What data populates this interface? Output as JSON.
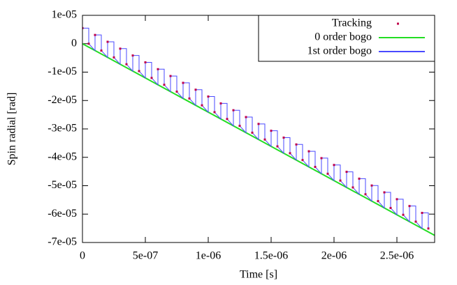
{
  "chart_data": {
    "type": "line",
    "xlabel": "Time [s]",
    "ylabel": "Spin radial [rad]",
    "xlim": [
      0,
      2.8e-06
    ],
    "ylim": [
      -7e-05,
      1e-05
    ],
    "xticks": [
      0,
      {
        "value": 5e-07,
        "label": "5e-07"
      },
      {
        "value": 1e-06,
        "label": "1e-06"
      },
      {
        "value": 1.5e-06,
        "label": "1.5e-06"
      },
      {
        "value": 2e-06,
        "label": "2e-06"
      },
      {
        "value": 2.5e-06,
        "label": "2.5e-06"
      }
    ],
    "yticks": [
      {
        "value": 1e-05,
        "label": "1e-05"
      },
      0,
      {
        "value": -1e-05,
        "label": "-1e-05"
      },
      {
        "value": -2e-05,
        "label": "-2e-05"
      },
      {
        "value": -3e-05,
        "label": "-3e-05"
      },
      {
        "value": -4e-05,
        "label": "-4e-05"
      },
      {
        "value": -5e-05,
        "label": "-5e-05"
      },
      {
        "value": -6e-05,
        "label": "-6e-05"
      },
      {
        "value": -7e-05,
        "label": "-7e-05"
      }
    ],
    "legend": "upper right",
    "series": [
      {
        "name": "Tracking",
        "style": "points",
        "color": "#c0004a",
        "x": [
          0,
          5e-08,
          1e-07,
          1.5e-07,
          2e-07,
          2.5e-07,
          3e-07,
          3.5e-07,
          4e-07,
          4.5e-07,
          5e-07,
          5.5e-07,
          6e-07,
          6.5e-07,
          7e-07,
          7.5e-07,
          8e-07,
          8.5e-07,
          9e-07,
          9.5e-07,
          1e-06,
          1.05e-06,
          1.1e-06,
          1.15e-06,
          1.2e-06,
          1.25e-06,
          1.3e-06,
          1.35e-06,
          1.4e-06,
          1.45e-06,
          1.5e-06,
          1.55e-06,
          1.6e-06,
          1.65e-06,
          1.7e-06,
          1.75e-06,
          1.8e-06,
          1.85e-06,
          1.9e-06,
          1.95e-06,
          2e-06,
          2.05e-06,
          2.1e-06,
          2.15e-06,
          2.2e-06,
          2.25e-06,
          2.3e-06,
          2.35e-06,
          2.4e-06,
          2.45e-06,
          2.5e-06,
          2.55e-06,
          2.6e-06,
          2.65e-06,
          2.7e-06,
          2.75e-06
        ],
        "values": [
          5.5e-06,
          0,
          3.09e-06,
          -2.41e-06,
          6.8e-07,
          -4.82e-06,
          -1.73e-06,
          -7.23e-06,
          -4.14e-06,
          -9.64e-06,
          -6.55e-06,
          -1.205e-05,
          -8.96e-06,
          -1.446e-05,
          -1.137e-05,
          -1.687e-05,
          -1.378e-05,
          -1.928e-05,
          -1.619e-05,
          -2.169e-05,
          -1.86e-05,
          -2.41e-05,
          -2.101e-05,
          -2.651e-05,
          -2.342e-05,
          -2.892e-05,
          -2.583e-05,
          -3.133e-05,
          -2.824e-05,
          -3.374e-05,
          -3.065e-05,
          -3.615e-05,
          -3.306e-05,
          -3.856e-05,
          -3.547e-05,
          -4.097e-05,
          -3.788e-05,
          -4.338e-05,
          -4.029e-05,
          -4.579e-05,
          -4.27e-05,
          -4.82e-05,
          -4.511e-05,
          -5.061e-05,
          -4.752e-05,
          -5.302e-05,
          -4.993e-05,
          -5.543e-05,
          -5.234e-05,
          -5.784e-05,
          -5.475e-05,
          -6.025e-05,
          -5.716e-05,
          -6.266e-05,
          -5.957e-05,
          -6.507e-05
        ]
      },
      {
        "name": "0 order bogo",
        "style": "line",
        "color": "#22dd22",
        "x": [
          0,
          2.8e-06
        ],
        "values": [
          0,
          -6.748e-05
        ]
      },
      {
        "name": "1st order bogo",
        "style": "line",
        "color": "#4a4aff",
        "x": [
          0,
          0,
          5e-08,
          5e-08,
          1e-07,
          1e-07,
          1.5e-07,
          1.5e-07,
          2e-07,
          2e-07,
          2.5e-07,
          2.5e-07,
          3e-07,
          3e-07,
          3.5e-07,
          3.5e-07,
          4e-07,
          4e-07,
          4.5e-07,
          4.5e-07,
          5e-07,
          5e-07,
          5.5e-07,
          5.5e-07,
          6e-07,
          6e-07,
          6.5e-07,
          6.5e-07,
          7e-07,
          7e-07,
          7.5e-07,
          7.5e-07,
          8e-07,
          8e-07,
          8.5e-07,
          8.5e-07,
          9e-07,
          9e-07,
          9.5e-07,
          9.5e-07,
          1e-06,
          1e-06,
          1.05e-06,
          1.05e-06,
          1.1e-06,
          1.1e-06,
          1.15e-06,
          1.15e-06,
          1.2e-06,
          1.2e-06,
          1.25e-06,
          1.25e-06,
          1.3e-06,
          1.3e-06,
          1.35e-06,
          1.35e-06,
          1.4e-06,
          1.4e-06,
          1.45e-06,
          1.45e-06,
          1.5e-06,
          1.5e-06,
          1.55e-06,
          1.55e-06,
          1.6e-06,
          1.6e-06,
          1.65e-06,
          1.65e-06,
          1.7e-06,
          1.7e-06,
          1.75e-06,
          1.75e-06,
          1.8e-06,
          1.8e-06,
          1.85e-06,
          1.85e-06,
          1.9e-06,
          1.9e-06,
          1.95e-06,
          1.95e-06,
          2e-06,
          2e-06,
          2.05e-06,
          2.05e-06,
          2.1e-06,
          2.1e-06,
          2.15e-06,
          2.15e-06,
          2.2e-06,
          2.2e-06,
          2.25e-06,
          2.25e-06,
          2.3e-06,
          2.3e-06,
          2.35e-06,
          2.35e-06,
          2.4e-06,
          2.4e-06,
          2.45e-06,
          2.45e-06,
          2.5e-06,
          2.5e-06,
          2.55e-06,
          2.55e-06,
          2.6e-06,
          2.6e-06,
          2.65e-06,
          2.65e-06,
          2.7e-06,
          2.7e-06,
          2.75e-06,
          2.75e-06
        ],
        "values": [
          0,
          5.5e-06,
          5.5e-06,
          0,
          -2.41e-06,
          3.09e-06,
          3.09e-06,
          -2.41e-06,
          -4.82e-06,
          6.8e-07,
          6.8e-07,
          -4.82e-06,
          -7.23e-06,
          -1.73e-06,
          -1.73e-06,
          -7.23e-06,
          -9.64e-06,
          -4.14e-06,
          -4.14e-06,
          -9.64e-06,
          -1.205e-05,
          -6.55e-06,
          -6.55e-06,
          -1.205e-05,
          -1.446e-05,
          -8.96e-06,
          -8.96e-06,
          -1.446e-05,
          -1.687e-05,
          -1.137e-05,
          -1.137e-05,
          -1.687e-05,
          -1.928e-05,
          -1.378e-05,
          -1.378e-05,
          -1.928e-05,
          -2.169e-05,
          -1.619e-05,
          -1.619e-05,
          -2.169e-05,
          -2.41e-05,
          -1.86e-05,
          -1.86e-05,
          -2.41e-05,
          -2.651e-05,
          -2.101e-05,
          -2.101e-05,
          -2.651e-05,
          -2.892e-05,
          -2.342e-05,
          -2.342e-05,
          -2.892e-05,
          -3.133e-05,
          -2.583e-05,
          -2.583e-05,
          -3.133e-05,
          -3.374e-05,
          -2.824e-05,
          -2.824e-05,
          -3.374e-05,
          -3.615e-05,
          -3.065e-05,
          -3.065e-05,
          -3.615e-05,
          -3.856e-05,
          -3.306e-05,
          -3.306e-05,
          -3.856e-05,
          -4.097e-05,
          -3.547e-05,
          -3.547e-05,
          -4.097e-05,
          -4.338e-05,
          -3.788e-05,
          -3.788e-05,
          -4.338e-05,
          -4.579e-05,
          -4.029e-05,
          -4.029e-05,
          -4.579e-05,
          -4.82e-05,
          -4.27e-05,
          -4.27e-05,
          -4.82e-05,
          -5.061e-05,
          -4.511e-05,
          -4.511e-05,
          -5.061e-05,
          -5.302e-05,
          -4.752e-05,
          -4.752e-05,
          -5.302e-05,
          -5.543e-05,
          -4.993e-05,
          -4.993e-05,
          -5.543e-05,
          -5.784e-05,
          -5.234e-05,
          -5.234e-05,
          -5.784e-05,
          -6.025e-05,
          -5.475e-05,
          -5.475e-05,
          -6.025e-05,
          -6.266e-05,
          -5.716e-05,
          -5.716e-05,
          -6.266e-05,
          -6.507e-05,
          -5.957e-05,
          -5.957e-05,
          -6.507e-05
        ]
      }
    ]
  }
}
